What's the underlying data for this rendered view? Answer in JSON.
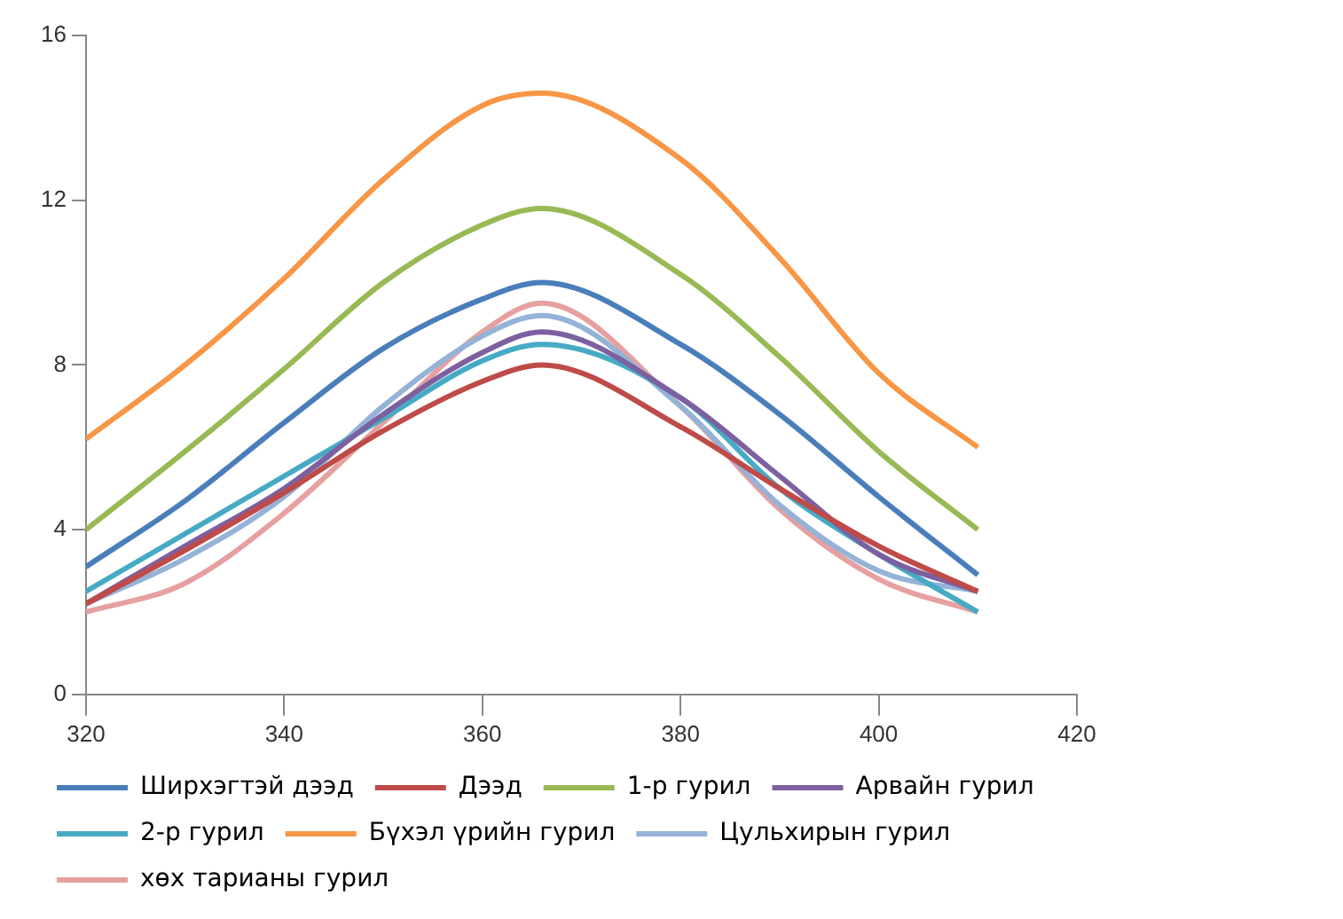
{
  "chart_data": {
    "type": "line",
    "x": [
      320,
      330,
      340,
      350,
      360,
      366,
      380,
      390,
      400,
      410
    ],
    "xlim": [
      320,
      420
    ],
    "xticks": [
      320,
      340,
      360,
      380,
      400,
      420
    ],
    "ylim": [
      0,
      16
    ],
    "yticks": [
      0,
      4,
      8,
      12,
      16
    ],
    "grid": false,
    "legend": "bottom",
    "marker": "none",
    "line_style": "solid",
    "series": [
      {
        "name": "Ширхэгтэй дээд",
        "color": "#4a7ebb",
        "values": [
          3.1,
          4.7,
          6.6,
          8.4,
          9.6,
          10.0,
          8.5,
          6.8,
          4.8,
          2.9
        ]
      },
      {
        "name": "Дээд",
        "color": "#be4b48",
        "values": [
          2.2,
          3.5,
          4.9,
          6.4,
          7.6,
          8.0,
          6.5,
          5.0,
          3.6,
          2.5
        ]
      },
      {
        "name": "1-р гурил",
        "color": "#98b954",
        "values": [
          4.0,
          5.9,
          7.9,
          10.0,
          11.4,
          11.8,
          10.2,
          8.2,
          5.9,
          4.0
        ]
      },
      {
        "name": "Арвайн гурил",
        "color": "#7d60a0",
        "values": [
          2.2,
          3.6,
          5.0,
          6.8,
          8.3,
          8.8,
          7.2,
          5.3,
          3.4,
          2.5
        ]
      },
      {
        "name": "2-р гурил",
        "color": "#46aac5",
        "values": [
          2.5,
          3.9,
          5.3,
          6.7,
          8.1,
          8.5,
          7.2,
          5.0,
          3.4,
          2.0
        ]
      },
      {
        "name": "Бүхэл үрийн гурил",
        "color": "#f79646",
        "values": [
          6.2,
          8.0,
          10.1,
          12.5,
          14.3,
          14.6,
          13.0,
          10.6,
          7.8,
          6.0
        ]
      },
      {
        "name": "Цульхирын гурил",
        "color": "#95b3d7",
        "values": [
          2.2,
          3.3,
          4.8,
          7.0,
          8.7,
          9.2,
          7.0,
          4.6,
          3.0,
          2.5
        ]
      },
      {
        "name": "хөх тарианы гурил",
        "color": "#e6a0a0",
        "values": [
          2.0,
          2.7,
          4.4,
          6.6,
          8.8,
          9.5,
          7.0,
          4.5,
          2.8,
          2.0
        ]
      }
    ]
  }
}
